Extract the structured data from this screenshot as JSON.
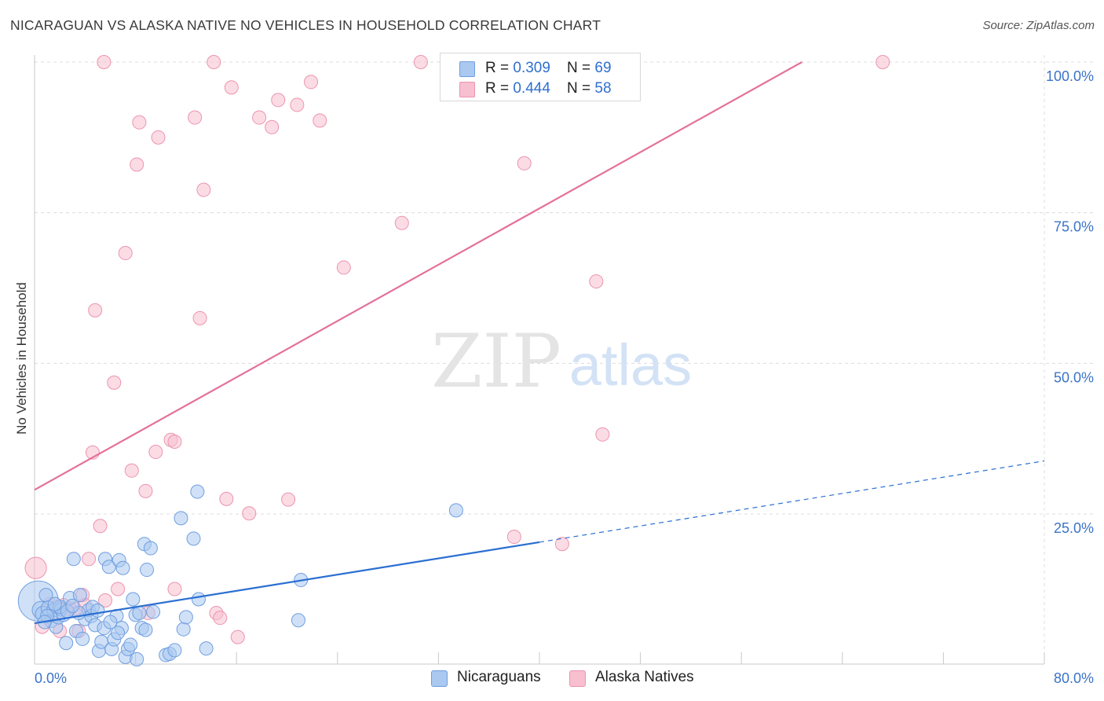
{
  "header": {
    "title": "NICARAGUAN VS ALASKA NATIVE NO VEHICLES IN HOUSEHOLD CORRELATION CHART",
    "source": "Source: ZipAtlas.com"
  },
  "watermark": {
    "zip": "ZIP",
    "atlas": "atlas"
  },
  "colors": {
    "blue_fill": "#aac8f0",
    "blue_stroke": "#6f9ee0",
    "blue_line": "#2b6fd1",
    "pink_fill": "#f7bfd0",
    "pink_stroke": "#ec94b0",
    "pink_line": "#e4709a",
    "axis_text": "#3b73c8",
    "grid": "#dcdcdc"
  },
  "legend": {
    "rows": [
      {
        "series": "Nicaraguans",
        "r_label": "R = ",
        "r_value": "0.309",
        "n_label": "N = ",
        "n_value": "69"
      },
      {
        "series": "Alaska Natives",
        "r_label": "R = ",
        "r_value": "0.444",
        "n_label": "N = ",
        "n_value": "58"
      }
    ],
    "bottom": [
      "Nicaraguans",
      "Alaska Natives"
    ]
  },
  "chart_data": {
    "type": "scatter",
    "title": "NICARAGUAN VS ALASKA NATIVE NO VEHICLES IN HOUSEHOLD CORRELATION CHART",
    "xlabel": "",
    "ylabel": "No Vehicles in Household",
    "xlim": [
      0,
      80
    ],
    "ylim": [
      0,
      100
    ],
    "x_tick_labels": [
      {
        "value": 0,
        "label": "0.0%"
      },
      {
        "value": 80,
        "label": "80.0%"
      }
    ],
    "y_tick_labels": [
      {
        "value": 25,
        "label": "25.0%"
      },
      {
        "value": 50,
        "label": "50.0%"
      },
      {
        "value": 75,
        "label": "75.0%"
      },
      {
        "value": 100,
        "label": "100.0%"
      }
    ],
    "series": [
      {
        "name": "Nicaraguans",
        "color": "blue",
        "points": [
          [
            0.3,
            10.5,
            3
          ],
          [
            0.5,
            9,
            1.3
          ],
          [
            0.7,
            8.3,
            1.2
          ],
          [
            0.9,
            11.5,
            1
          ],
          [
            1.1,
            9.3,
            1.1
          ],
          [
            1.3,
            7.2,
            1
          ],
          [
            1.5,
            9,
            1
          ],
          [
            1.7,
            6.2,
            1
          ],
          [
            1.9,
            7.8,
            1
          ],
          [
            2.1,
            9.1,
            1
          ],
          [
            2.3,
            8.2,
            1
          ],
          [
            2.5,
            3.5,
            1
          ],
          [
            2.8,
            11,
            1
          ],
          [
            3.1,
            17.5,
            1
          ],
          [
            3.3,
            5.5,
            1
          ],
          [
            3.6,
            11.5,
            1
          ],
          [
            3.8,
            4.2,
            1
          ],
          [
            4.0,
            7.5,
            1
          ],
          [
            4.3,
            9,
            1
          ],
          [
            4.5,
            8,
            1
          ],
          [
            4.8,
            6.5,
            1
          ],
          [
            5.1,
            2.2,
            1
          ],
          [
            5.3,
            3.7,
            1
          ],
          [
            5.5,
            6,
            1
          ],
          [
            5.6,
            17.5,
            1
          ],
          [
            5.9,
            16.2,
            1
          ],
          [
            6.1,
            2.5,
            1
          ],
          [
            6.3,
            4.1,
            1
          ],
          [
            6.5,
            8,
            1
          ],
          [
            6.7,
            17.3,
            1
          ],
          [
            6.9,
            6,
            1
          ],
          [
            7.0,
            16,
            1
          ],
          [
            7.2,
            1.2,
            1
          ],
          [
            7.4,
            2.5,
            1
          ],
          [
            7.6,
            3.2,
            1
          ],
          [
            7.8,
            10.8,
            1
          ],
          [
            8.0,
            8.2,
            1
          ],
          [
            8.1,
            0.8,
            1
          ],
          [
            8.3,
            8.5,
            1
          ],
          [
            8.5,
            6,
            1
          ],
          [
            8.7,
            20,
            1
          ],
          [
            8.8,
            5.7,
            1
          ],
          [
            8.9,
            15.7,
            1
          ],
          [
            9.2,
            19.3,
            1
          ],
          [
            9.4,
            8.7,
            1
          ],
          [
            10.4,
            1.5,
            1
          ],
          [
            10.7,
            1.7,
            1
          ],
          [
            11.1,
            2.3,
            1
          ],
          [
            11.8,
            5.8,
            1
          ],
          [
            12.0,
            7.8,
            1
          ],
          [
            12.6,
            20.9,
            1
          ],
          [
            13.0,
            10.8,
            1
          ],
          [
            13.6,
            2.6,
            1
          ],
          [
            11.6,
            24.3,
            1
          ],
          [
            12.9,
            28.7,
            1
          ],
          [
            20.9,
            7.3,
            1
          ],
          [
            21.1,
            14,
            1
          ],
          [
            33.4,
            25.6,
            1
          ],
          [
            1.0,
            8,
            1
          ],
          [
            2.0,
            9.5,
            1
          ],
          [
            3.5,
            8.5,
            1
          ],
          [
            4.6,
            9.5,
            1
          ],
          [
            6.0,
            7,
            1
          ],
          [
            0.8,
            7,
            1
          ],
          [
            1.6,
            10,
            1
          ],
          [
            2.6,
            8.8,
            1
          ],
          [
            3.0,
            9.7,
            1
          ],
          [
            5.0,
            8.9,
            1
          ],
          [
            6.6,
            5.2,
            1
          ]
        ],
        "trend": {
          "x_start": 0,
          "y_start": 6.8,
          "x_solid_end": 40,
          "y_solid_end": 20.3,
          "x_end": 80,
          "y_end": 33.8
        }
      },
      {
        "name": "Alaska Natives",
        "color": "pink",
        "points": [
          [
            0.1,
            16,
            1.6
          ],
          [
            0.6,
            6.2,
            1
          ],
          [
            1.2,
            10,
            1
          ],
          [
            1.8,
            9.5,
            1
          ],
          [
            2.3,
            9.8,
            1
          ],
          [
            3.2,
            9.2,
            1
          ],
          [
            3.5,
            5.5,
            1
          ],
          [
            3.8,
            11.5,
            1
          ],
          [
            4.3,
            17.5,
            1
          ],
          [
            4.6,
            35.2,
            1
          ],
          [
            4.8,
            58.8,
            1
          ],
          [
            5.2,
            23,
            1
          ],
          [
            5.6,
            10.6,
            1
          ],
          [
            6.3,
            46.8,
            1
          ],
          [
            6.6,
            12.5,
            1
          ],
          [
            7.2,
            68.3,
            1
          ],
          [
            7.7,
            32.2,
            1
          ],
          [
            8.1,
            83,
            1
          ],
          [
            8.3,
            90,
            1
          ],
          [
            8.8,
            28.8,
            1
          ],
          [
            9.0,
            8.5,
            1
          ],
          [
            9.6,
            35.3,
            1
          ],
          [
            9.8,
            87.5,
            1
          ],
          [
            10.8,
            37.3,
            1
          ],
          [
            11.1,
            37,
            1
          ],
          [
            11.1,
            12.5,
            1
          ],
          [
            12.7,
            90.8,
            1
          ],
          [
            13.1,
            57.5,
            1
          ],
          [
            13.4,
            78.8,
            1
          ],
          [
            14.2,
            100,
            1
          ],
          [
            14.4,
            8.5,
            1
          ],
          [
            14.7,
            7.7,
            1
          ],
          [
            15.2,
            27.5,
            1
          ],
          [
            15.6,
            95.8,
            1
          ],
          [
            16.1,
            4.5,
            1
          ],
          [
            17.0,
            25.1,
            1
          ],
          [
            17.8,
            90.8,
            1
          ],
          [
            18.8,
            89.2,
            1
          ],
          [
            19.3,
            93.7,
            1
          ],
          [
            20.1,
            27.4,
            1
          ],
          [
            20.8,
            92.9,
            1
          ],
          [
            21.9,
            96.7,
            1
          ],
          [
            22.6,
            90.3,
            1
          ],
          [
            24.5,
            65.9,
            1
          ],
          [
            29.1,
            73.3,
            1
          ],
          [
            30.6,
            100,
            1
          ],
          [
            33.0,
            100,
            1
          ],
          [
            38.0,
            21.2,
            1
          ],
          [
            38.8,
            83.2,
            1
          ],
          [
            41.8,
            20,
            1
          ],
          [
            44.5,
            63.6,
            1
          ],
          [
            45.0,
            38.2,
            1
          ],
          [
            67.2,
            100,
            1
          ],
          [
            5.5,
            100,
            1
          ],
          [
            2.0,
            5.5,
            1
          ],
          [
            2.8,
            9.2,
            1
          ],
          [
            4.0,
            9.8,
            1
          ],
          [
            1.5,
            8,
            1
          ]
        ],
        "trend": {
          "x_start": 0,
          "y_start": 29,
          "x_end": 60.8,
          "y_end": 100
        }
      }
    ],
    "grid": true,
    "legend_position": "top-center"
  }
}
